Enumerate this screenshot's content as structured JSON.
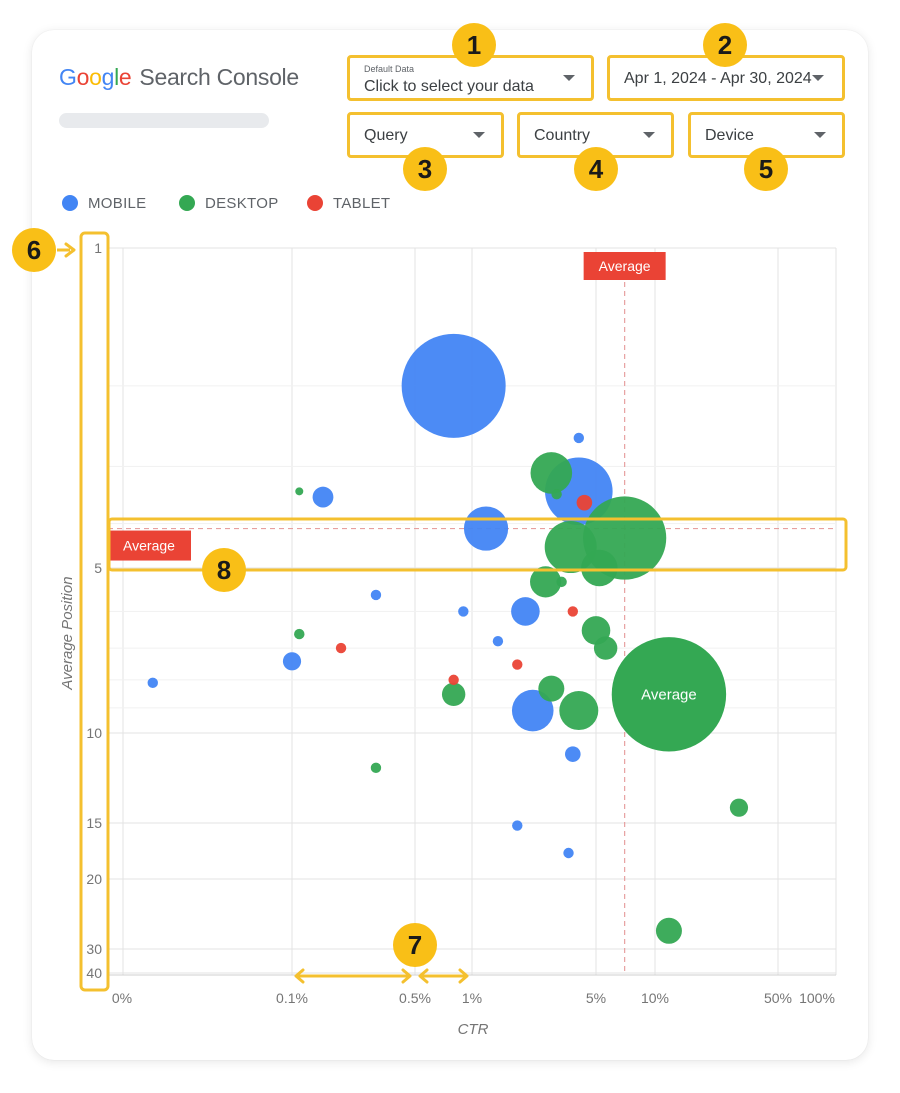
{
  "header": {
    "logo_letters": [
      "G",
      "o",
      "o",
      "g",
      "l",
      "e"
    ],
    "product_name": "Search Console"
  },
  "controls": {
    "data_source": {
      "small_label": "Default Data",
      "label": "Click to select your data"
    },
    "date_range": {
      "label": "Apr 1, 2024 - Apr 30, 2024"
    },
    "dimension_query": {
      "label": "Query"
    },
    "dimension_country": {
      "label": "Country"
    },
    "dimension_device": {
      "label": "Device"
    }
  },
  "badges": [
    "1",
    "2",
    "3",
    "4",
    "5",
    "6",
    "7",
    "8"
  ],
  "legend": [
    {
      "label": "MOBILE",
      "color": "#4285f4"
    },
    {
      "label": "DESKTOP",
      "color": "#34a853"
    },
    {
      "label": "TABLET",
      "color": "#ea4335"
    }
  ],
  "colors": {
    "mobile": "#4285f4",
    "desktop": "#34a853",
    "tablet": "#ea4335",
    "accent_annotation": "#f4c02f",
    "average_label": "#ea4335",
    "average_bubble": "#34a853"
  },
  "chart_data": {
    "type": "scatter",
    "xlabel": "CTR",
    "ylabel": "Average Position",
    "x_scale": "log",
    "y_scale": "log",
    "y_reversed": true,
    "x_ticks": [
      "0%",
      "0.1%",
      "0.5%",
      "1%",
      "5%",
      "10%",
      "50%",
      "100%"
    ],
    "y_ticks": [
      "1",
      "5",
      "10",
      "15",
      "20",
      "30",
      "40"
    ],
    "grid": true,
    "legend_placement": "top-left",
    "average_x_label": "Average",
    "average_y_label": "Average",
    "average_bubble_label": "Average",
    "average_ctr": 7,
    "average_position": 4.1,
    "average_bubble": {
      "ctr": 12,
      "position": 8.5,
      "size": 2.2
    },
    "series": [
      {
        "name": "MOBILE",
        "points": [
          {
            "ctr": 0.8,
            "position": 2.0,
            "size": 2.0
          },
          {
            "ctr": 4.0,
            "position": 2.6,
            "size": 0.2
          },
          {
            "ctr": 4.0,
            "position": 3.4,
            "size": 1.3
          },
          {
            "ctr": 0.15,
            "position": 3.5,
            "size": 0.4
          },
          {
            "ctr": 1.2,
            "position": 4.1,
            "size": 0.85
          },
          {
            "ctr": 0.3,
            "position": 5.6,
            "size": 0.2
          },
          {
            "ctr": 0.9,
            "position": 6.0,
            "size": 0.2
          },
          {
            "ctr": 2.0,
            "position": 6.0,
            "size": 0.55
          },
          {
            "ctr": 1.4,
            "position": 6.8,
            "size": 0.2
          },
          {
            "ctr": 0.1,
            "position": 7.4,
            "size": 0.35
          },
          {
            "ctr": 0.015,
            "position": 8.1,
            "size": 0.2
          },
          {
            "ctr": 2.2,
            "position": 9.1,
            "size": 0.8
          },
          {
            "ctr": 3.7,
            "position": 11.0,
            "size": 0.3
          },
          {
            "ctr": 1.8,
            "position": 15.2,
            "size": 0.2
          },
          {
            "ctr": 3.5,
            "position": 17.5,
            "size": 0.2
          }
        ]
      },
      {
        "name": "DESKTOP",
        "points": [
          {
            "ctr": 2.8,
            "position": 3.1,
            "size": 0.8
          },
          {
            "ctr": 3.0,
            "position": 3.45,
            "size": 0.2
          },
          {
            "ctr": 0.11,
            "position": 3.4,
            "size": 0.15
          },
          {
            "ctr": 7.0,
            "position": 4.3,
            "size": 1.6
          },
          {
            "ctr": 3.6,
            "position": 4.5,
            "size": 1.0
          },
          {
            "ctr": 5.2,
            "position": 5.0,
            "size": 0.7
          },
          {
            "ctr": 2.6,
            "position": 5.3,
            "size": 0.6
          },
          {
            "ctr": 3.2,
            "position": 5.3,
            "size": 0.2
          },
          {
            "ctr": 5.0,
            "position": 6.5,
            "size": 0.55
          },
          {
            "ctr": 5.6,
            "position": 7.0,
            "size": 0.45
          },
          {
            "ctr": 0.11,
            "position": 6.6,
            "size": 0.2
          },
          {
            "ctr": 2.8,
            "position": 8.3,
            "size": 0.5
          },
          {
            "ctr": 0.8,
            "position": 8.5,
            "size": 0.45
          },
          {
            "ctr": 4.0,
            "position": 9.1,
            "size": 0.75
          },
          {
            "ctr": 0.3,
            "position": 11.7,
            "size": 0.2
          },
          {
            "ctr": 30,
            "position": 14.0,
            "size": 0.35
          },
          {
            "ctr": 12,
            "position": 27.0,
            "size": 0.5
          }
        ]
      },
      {
        "name": "TABLET",
        "points": [
          {
            "ctr": 4.3,
            "position": 3.6,
            "size": 0.3
          },
          {
            "ctr": 3.7,
            "position": 6.0,
            "size": 0.2
          },
          {
            "ctr": 0.19,
            "position": 7.0,
            "size": 0.2
          },
          {
            "ctr": 1.8,
            "position": 7.5,
            "size": 0.2
          },
          {
            "ctr": 0.8,
            "position": 8.0,
            "size": 0.2
          }
        ]
      }
    ]
  }
}
